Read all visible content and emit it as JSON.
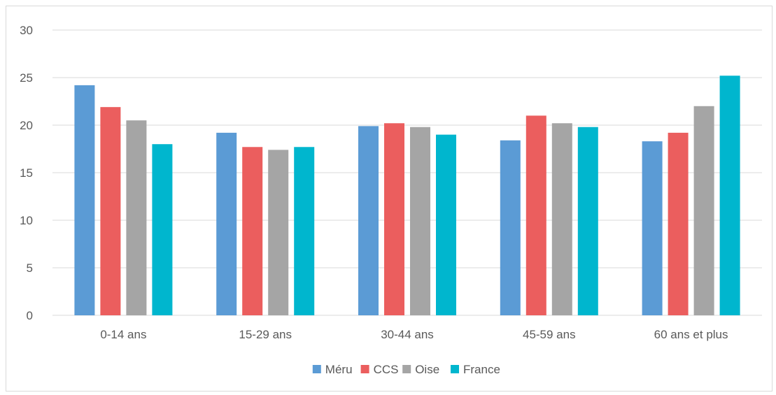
{
  "chart_data": {
    "type": "bar",
    "title": "",
    "xlabel": "",
    "ylabel": "",
    "categories": [
      "0-14 ans",
      "15-29 ans",
      "30-44 ans",
      "45-59 ans",
      "60 ans et plus"
    ],
    "ylim": [
      0,
      30
    ],
    "yticks": [
      0,
      5,
      10,
      15,
      20,
      25,
      30
    ],
    "grid": true,
    "legend_position": "bottom",
    "series": [
      {
        "name": "Méru",
        "color": "#5b9bd5",
        "values": [
          24.2,
          19.2,
          19.9,
          18.4,
          18.3
        ]
      },
      {
        "name": "CCS",
        "color": "#eb5e5e",
        "values": [
          21.9,
          17.7,
          20.2,
          21.0,
          19.2
        ]
      },
      {
        "name": "Oise",
        "color": "#a5a5a5",
        "values": [
          20.5,
          17.4,
          19.8,
          20.2,
          22.0
        ]
      },
      {
        "name": "France",
        "color": "#00b6ce",
        "values": [
          18.0,
          17.7,
          19.0,
          19.8,
          25.2
        ]
      }
    ]
  }
}
